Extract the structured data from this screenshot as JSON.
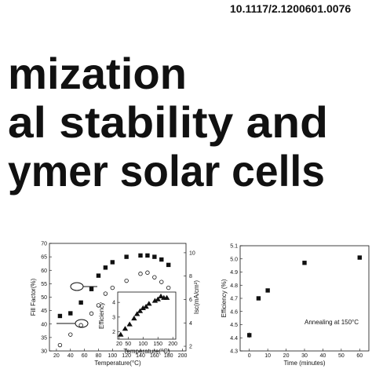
{
  "header": {
    "doi": "10.1117/2.1200601.0076",
    "title_lines": [
      "mization",
      "al stability and",
      "ymer solar cells"
    ]
  },
  "chart_data": [
    {
      "type": "scatter",
      "xlabel": "Temperature(°C)",
      "ylabel": "Fill Factor(%)",
      "y2label": "Isc(mA/cm²)",
      "xlim": [
        10,
        205
      ],
      "xticks": [
        20,
        40,
        60,
        80,
        100,
        120,
        140,
        160,
        180,
        200
      ],
      "ylim": [
        30,
        70
      ],
      "yticks": [
        30,
        35,
        40,
        45,
        50,
        55,
        60,
        65,
        70
      ],
      "y2lim": [
        1.6,
        10.8
      ],
      "y2ticks": [
        2,
        4,
        6,
        8,
        10
      ],
      "x": [
        25,
        40,
        55,
        70,
        80,
        90,
        100,
        120,
        140,
        150,
        160,
        170,
        180
      ],
      "series": [
        {
          "name": "Fill Factor",
          "color": "#111111",
          "marker": "square",
          "filled": true,
          "values": [
            43,
            44,
            48,
            53,
            58,
            61,
            63,
            65,
            65.5,
            65.5,
            65,
            64,
            62
          ]
        },
        {
          "name": "Isc",
          "color": "#111111",
          "marker": "circle",
          "filled": false,
          "axis": "y2",
          "values": [
            2.1,
            3,
            3.8,
            4.8,
            5.5,
            6.5,
            7,
            7.6,
            8.2,
            8.3,
            7.9,
            7.5,
            7
          ]
        }
      ]
    },
    {
      "type": "scatter",
      "xlabel": "Temperature(°C)",
      "ylabel": "Efficiency",
      "xlim": [
        15,
        210
      ],
      "xticks": [
        20,
        50,
        100,
        150,
        200
      ],
      "ylim": [
        1.5,
        4.7
      ],
      "yticks": [
        2,
        3,
        4
      ],
      "x": [
        25,
        40,
        55,
        70,
        80,
        90,
        100,
        110,
        120,
        140,
        150,
        160,
        170,
        180
      ],
      "series": [
        {
          "name": "Efficiency",
          "color": "#111111",
          "marker": "triangle",
          "filled": true,
          "values": [
            1.8,
            2.2,
            2.5,
            2.9,
            3.2,
            3.4,
            3.6,
            3.7,
            3.9,
            4.1,
            4.2,
            4.4,
            4.3,
            4.3
          ]
        }
      ]
    },
    {
      "type": "scatter",
      "xlabel": "Time (minutes)",
      "ylabel": "Efficiency (%)",
      "xlim": [
        -5,
        65
      ],
      "xticks": [
        0,
        10,
        20,
        30,
        40,
        50,
        60
      ],
      "ylim": [
        4.3,
        5.1
      ],
      "yticks": [
        4.3,
        4.4,
        4.5,
        4.6,
        4.7,
        4.8,
        4.9,
        {
          "value": 5,
          "label": "5.0"
        },
        5.1
      ],
      "annotation": "Annealing at 150°C",
      "x": [
        0,
        5,
        10,
        30,
        60
      ],
      "series": [
        {
          "name": "Efficiency",
          "color": "#111111",
          "marker": "square",
          "filled": true,
          "values": [
            4.42,
            4.7,
            4.76,
            4.97,
            5.01
          ],
          "errors": [
            0.02,
            0.01,
            0.015,
            0.01,
            0.01
          ]
        }
      ]
    }
  ]
}
